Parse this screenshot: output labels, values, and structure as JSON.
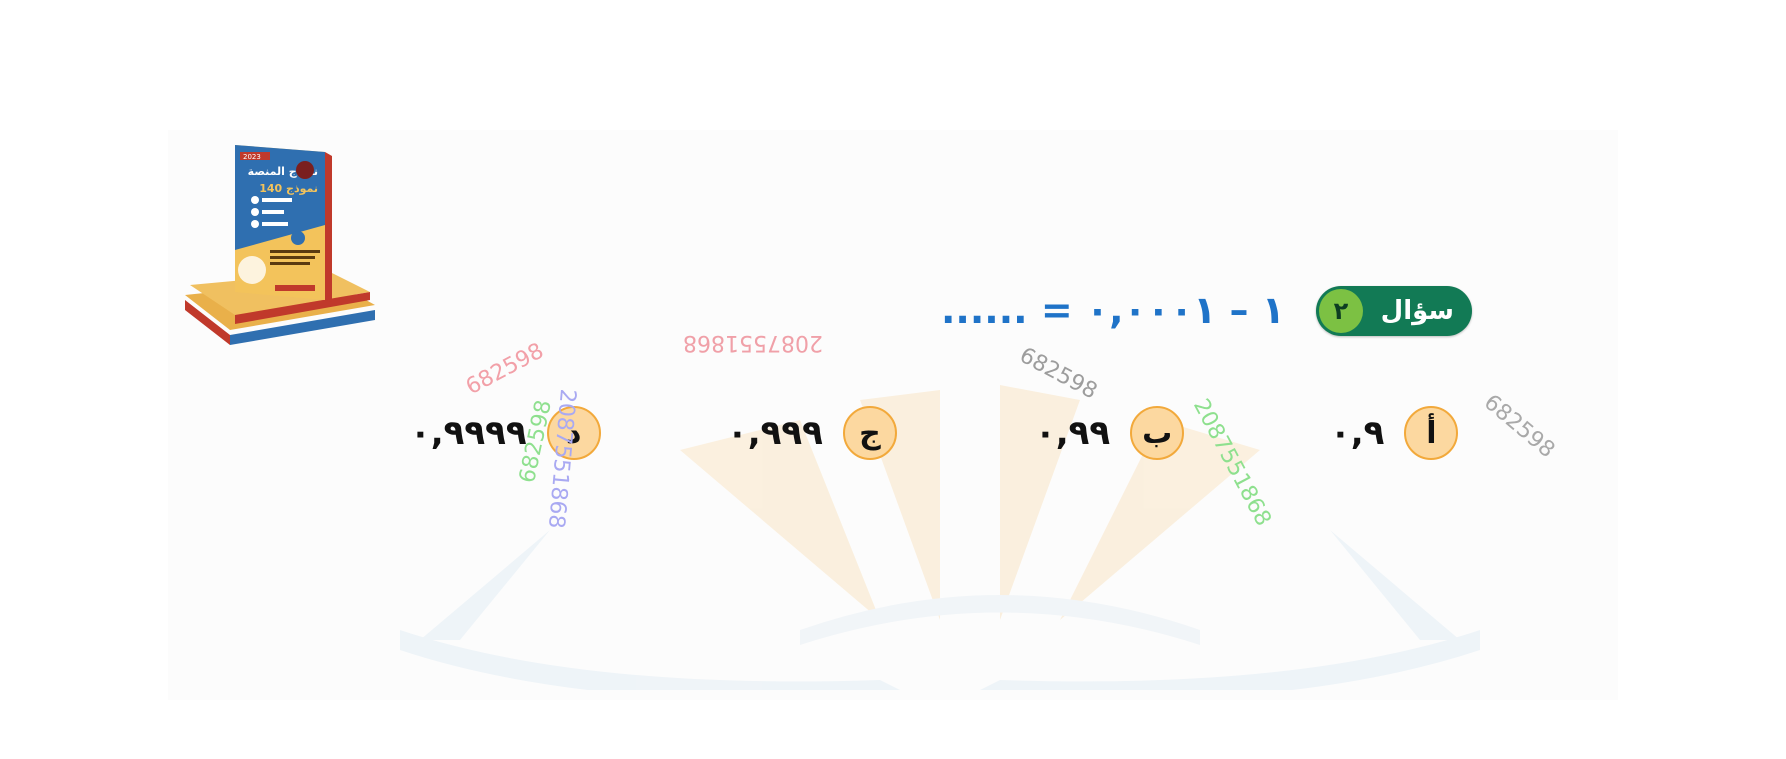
{
  "question": {
    "label": "سؤال",
    "number": "٢",
    "text": "١ – ٠,٠٠٠١ = ......"
  },
  "options": [
    {
      "letter": "أ",
      "value": "٠,٩"
    },
    {
      "letter": "ب",
      "value": "٠,٩٩"
    },
    {
      "letter": "ج",
      "value": "٠,٩٩٩"
    },
    {
      "letter": "د",
      "value": "٠,٩٩٩٩"
    }
  ],
  "watermarks": {
    "code_short": "682598",
    "code_long": "2087551868"
  },
  "book": {
    "year": "2023",
    "title": "نماذج المنصة",
    "count": "140 نموذج"
  },
  "colors": {
    "badge_bg": "#127a55",
    "badge_number_bg": "#7cc143",
    "question_text": "#1f73c8",
    "option_circle_bg": "#fcd8a0",
    "option_circle_border": "#f2a93b"
  }
}
